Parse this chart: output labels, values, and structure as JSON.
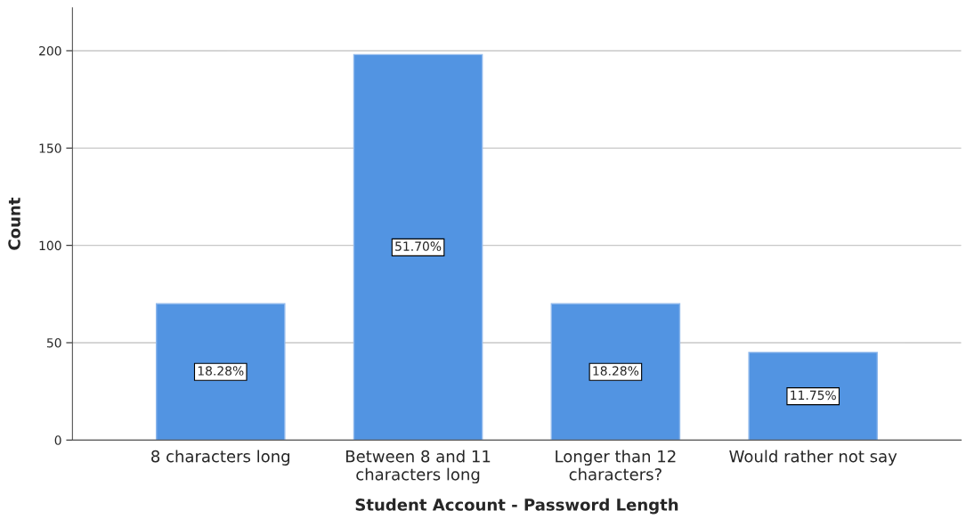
{
  "chart_data": {
    "type": "bar",
    "categories": [
      "8 characters long",
      "Between 8 and 11\ncharacters long",
      "Longer than 12\ncharacters?",
      "Would rather not say"
    ],
    "values": [
      70,
      198,
      70,
      45
    ],
    "annotations": [
      "18.28%",
      "51.70%",
      "18.28%",
      "11.75%"
    ],
    "color": "#5294e2",
    "xlabel": "Student Account - Password Length",
    "ylabel": "Count",
    "ylim": [
      0,
      222
    ],
    "yticks": [
      0,
      50,
      100,
      150,
      200
    ],
    "grid": "y"
  }
}
